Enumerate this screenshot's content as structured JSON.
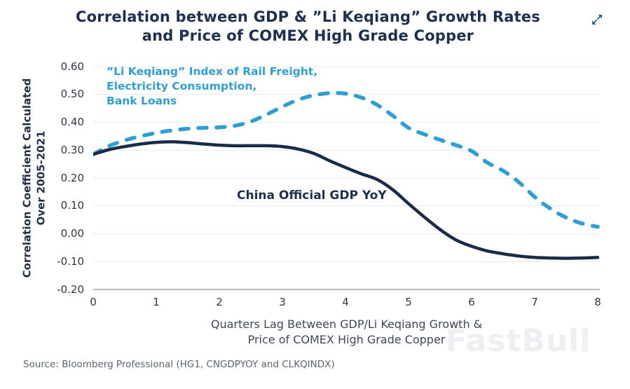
{
  "header": {
    "title": "Correlation between GDP & ”Li Keqiang” Growth Rates\nand Price of COMEX High Grade Copper"
  },
  "icons": {
    "expand": "expand-diagonal-arrows",
    "expand_color": "#2a66a5"
  },
  "watermark": {
    "text": "FastBull"
  },
  "footer": {
    "source": "Source: Bloomberg Professional (HG1, CNGDPYOY and CLKQINDX)"
  },
  "chart_data": {
    "type": "line",
    "title": "Correlation between GDP & ”Li Keqiang” Growth Rates and Price of COMEX High Grade Copper",
    "xlabel": "Quarters Lag Between GDP/Li Keqiang Growth &\nPrice of COMEX High Grade Copper",
    "ylabel": "Correlation Coefficient Calculated\nOver 2005-2021",
    "xlim": [
      0,
      8
    ],
    "ylim": [
      -0.2,
      0.6
    ],
    "grid": "horizontal",
    "legend_position": "labels-on-chart",
    "yticks": [
      "0.60",
      "0.50",
      "0.40",
      "0.30",
      "0.20",
      "0.10",
      "0.00",
      "-0.10",
      "-0.20"
    ],
    "xticks": [
      "0",
      "1",
      "2",
      "3",
      "4",
      "5",
      "6",
      "7",
      "8"
    ],
    "x": [
      0,
      0.25,
      0.5,
      0.75,
      1,
      1.25,
      1.5,
      1.75,
      2,
      2.25,
      2.5,
      2.75,
      3,
      3.25,
      3.5,
      3.75,
      4,
      4.25,
      4.5,
      4.75,
      5,
      5.25,
      5.5,
      5.75,
      6,
      6.25,
      6.5,
      6.75,
      7,
      7.25,
      7.5,
      7.75,
      8
    ],
    "series": [
      {
        "name": "”Li Keqiang” Index of Rail Freight,\nElectricity Consumption,\nBank Loans",
        "color": "#2f9fd3",
        "style": "dashed",
        "line_width": 5.5,
        "values": [
          0.285,
          0.315,
          0.335,
          0.35,
          0.362,
          0.371,
          0.377,
          0.38,
          0.382,
          0.388,
          0.403,
          0.428,
          0.456,
          0.481,
          0.497,
          0.505,
          0.503,
          0.489,
          0.463,
          0.424,
          0.38,
          0.357,
          0.337,
          0.318,
          0.297,
          0.255,
          0.226,
          0.185,
          0.132,
          0.09,
          0.058,
          0.037,
          0.025
        ]
      },
      {
        "name": "China Official GDP YoY",
        "color": "#1a2b47",
        "style": "solid",
        "line_width": 4.5,
        "values": [
          0.285,
          0.302,
          0.313,
          0.322,
          0.328,
          0.33,
          0.327,
          0.322,
          0.318,
          0.316,
          0.316,
          0.316,
          0.313,
          0.304,
          0.288,
          0.262,
          0.238,
          0.215,
          0.195,
          0.158,
          0.108,
          0.06,
          0.015,
          -0.022,
          -0.045,
          -0.062,
          -0.072,
          -0.08,
          -0.085,
          -0.087,
          -0.088,
          -0.087,
          -0.085
        ]
      }
    ]
  }
}
